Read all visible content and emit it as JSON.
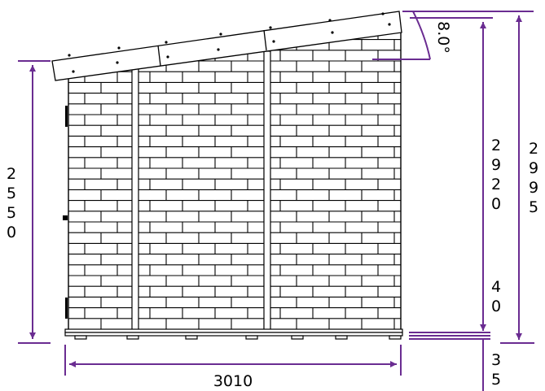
{
  "colors": {
    "dimension": "#6a2c91",
    "line": "#000000",
    "background": "#ffffff"
  },
  "dimensions": {
    "total_width": "3010",
    "wall_height": "2550",
    "rear_height": "2920",
    "total_height": "2995",
    "base_offset": "40",
    "foundation": "35",
    "roof_angle": "8.0°"
  }
}
